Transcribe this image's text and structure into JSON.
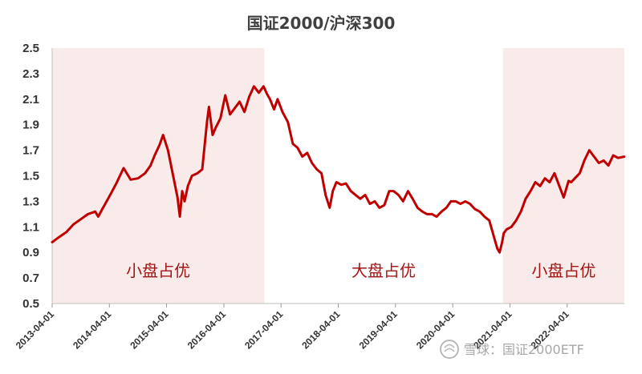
{
  "chart_data": {
    "type": "line",
    "title": "国证2000/沪深300",
    "xlabel": "",
    "ylabel": "",
    "ylim": [
      0.5,
      2.5
    ],
    "yticks": [
      "0.5",
      "0.7",
      "0.9",
      "1.1",
      "1.3",
      "1.5",
      "1.7",
      "1.9",
      "2.1",
      "2.3",
      "2.5"
    ],
    "xtick_labels": [
      "2013-04-01",
      "2014-04-01",
      "2015-04-01",
      "2016-04-01",
      "2017-04-01",
      "2018-04-01",
      "2019-04-01",
      "2020-04-01",
      "2021-04-01",
      "2022-04-01"
    ],
    "xlim": [
      "2013-04-01",
      "2023-04-01"
    ],
    "grid": false,
    "line_color": "#c00000",
    "shade_color": "#f9ebea",
    "regions": [
      {
        "label": "小盘占优",
        "start": "2013-04-01",
        "end": "2016-12-15",
        "shaded": true
      },
      {
        "label": "大盘占优",
        "start": "2016-12-15",
        "end": "2021-02-15",
        "shaded": false
      },
      {
        "label": "小盘占优",
        "start": "2021-02-15",
        "end": "2023-04-01",
        "shaded": true
      }
    ],
    "series": [
      {
        "x": [
          "2013-04-01",
          "2013-05-15",
          "2013-07-01",
          "2013-08-15",
          "2013-10-01",
          "2013-11-15",
          "2014-01-01",
          "2014-01-20",
          "2014-02-15",
          "2014-03-15",
          "2014-04-15",
          "2014-05-15",
          "2014-07-01",
          "2014-08-15",
          "2014-10-01",
          "2014-11-15",
          "2014-12-20",
          "2015-01-15",
          "2015-02-15",
          "2015-03-10",
          "2015-04-10",
          "2015-05-10",
          "2015-06-10",
          "2015-06-25",
          "2015-07-10",
          "2015-07-25",
          "2015-08-15",
          "2015-09-10",
          "2015-10-15",
          "2015-11-15",
          "2015-12-15",
          "2015-12-28",
          "2016-01-20",
          "2016-02-10",
          "2016-03-10",
          "2016-04-10",
          "2016-05-10",
          "2016-06-10",
          "2016-07-10",
          "2016-08-10",
          "2016-09-10",
          "2016-10-10",
          "2016-11-10",
          "2016-12-10",
          "2017-01-01",
          "2017-01-20",
          "2017-02-15",
          "2017-03-10",
          "2017-04-10",
          "2017-05-15",
          "2017-06-15",
          "2017-07-15",
          "2017-08-15",
          "2017-09-15",
          "2017-10-15",
          "2017-11-15",
          "2017-12-15",
          "2018-01-10",
          "2018-02-05",
          "2018-02-25",
          "2018-03-20",
          "2018-04-20",
          "2018-05-20",
          "2018-06-20",
          "2018-07-20",
          "2018-08-20",
          "2018-09-20",
          "2018-10-20",
          "2018-11-20",
          "2018-12-20",
          "2019-01-20",
          "2019-02-20",
          "2019-03-20",
          "2019-04-20",
          "2019-05-20",
          "2019-06-20",
          "2019-07-20",
          "2019-08-20",
          "2019-09-20",
          "2019-10-20",
          "2019-11-20",
          "2019-12-20",
          "2020-01-20",
          "2020-02-20",
          "2020-03-20",
          "2020-04-20",
          "2020-05-20",
          "2020-06-20",
          "2020-07-20",
          "2020-08-20",
          "2020-09-20",
          "2020-10-20",
          "2020-11-20",
          "2020-12-20",
          "2021-01-10",
          "2021-01-25",
          "2021-02-10",
          "2021-02-20",
          "2021-03-10",
          "2021-04-10",
          "2021-05-10",
          "2021-06-10",
          "2021-07-10",
          "2021-08-10",
          "2021-09-10",
          "2021-10-10",
          "2021-11-10",
          "2021-12-10",
          "2022-01-10",
          "2022-02-10",
          "2022-03-10",
          "2022-04-10",
          "2022-04-27",
          "2022-05-20",
          "2022-06-20",
          "2022-07-20",
          "2022-08-20",
          "2022-09-20",
          "2022-10-20",
          "2022-11-20",
          "2022-12-20",
          "2023-01-20",
          "2023-02-20",
          "2023-03-31"
        ],
        "y": [
          0.98,
          1.02,
          1.06,
          1.12,
          1.16,
          1.2,
          1.22,
          1.18,
          1.24,
          1.3,
          1.37,
          1.44,
          1.56,
          1.47,
          1.48,
          1.52,
          1.58,
          1.66,
          1.74,
          1.82,
          1.7,
          1.52,
          1.33,
          1.18,
          1.38,
          1.3,
          1.42,
          1.5,
          1.52,
          1.55,
          1.92,
          2.04,
          1.82,
          1.88,
          1.95,
          2.13,
          1.98,
          2.03,
          2.08,
          2.0,
          2.12,
          2.2,
          2.15,
          2.2,
          2.14,
          2.1,
          2.02,
          2.1,
          2.0,
          1.92,
          1.75,
          1.72,
          1.65,
          1.68,
          1.6,
          1.55,
          1.52,
          1.35,
          1.25,
          1.38,
          1.45,
          1.43,
          1.44,
          1.38,
          1.35,
          1.32,
          1.35,
          1.28,
          1.3,
          1.25,
          1.27,
          1.38,
          1.38,
          1.35,
          1.3,
          1.38,
          1.32,
          1.25,
          1.22,
          1.2,
          1.2,
          1.18,
          1.22,
          1.25,
          1.3,
          1.3,
          1.28,
          1.3,
          1.28,
          1.24,
          1.22,
          1.18,
          1.15,
          1.02,
          0.93,
          0.9,
          0.98,
          1.05,
          1.08,
          1.1,
          1.15,
          1.22,
          1.32,
          1.38,
          1.45,
          1.42,
          1.48,
          1.45,
          1.52,
          1.42,
          1.33,
          1.46,
          1.45,
          1.48,
          1.52,
          1.62,
          1.7,
          1.65,
          1.6,
          1.62,
          1.58,
          1.66,
          1.64,
          1.65
        ]
      }
    ]
  },
  "watermark": {
    "text": "雪球：国证2000ETF",
    "icon": "snowball-logo-icon"
  }
}
